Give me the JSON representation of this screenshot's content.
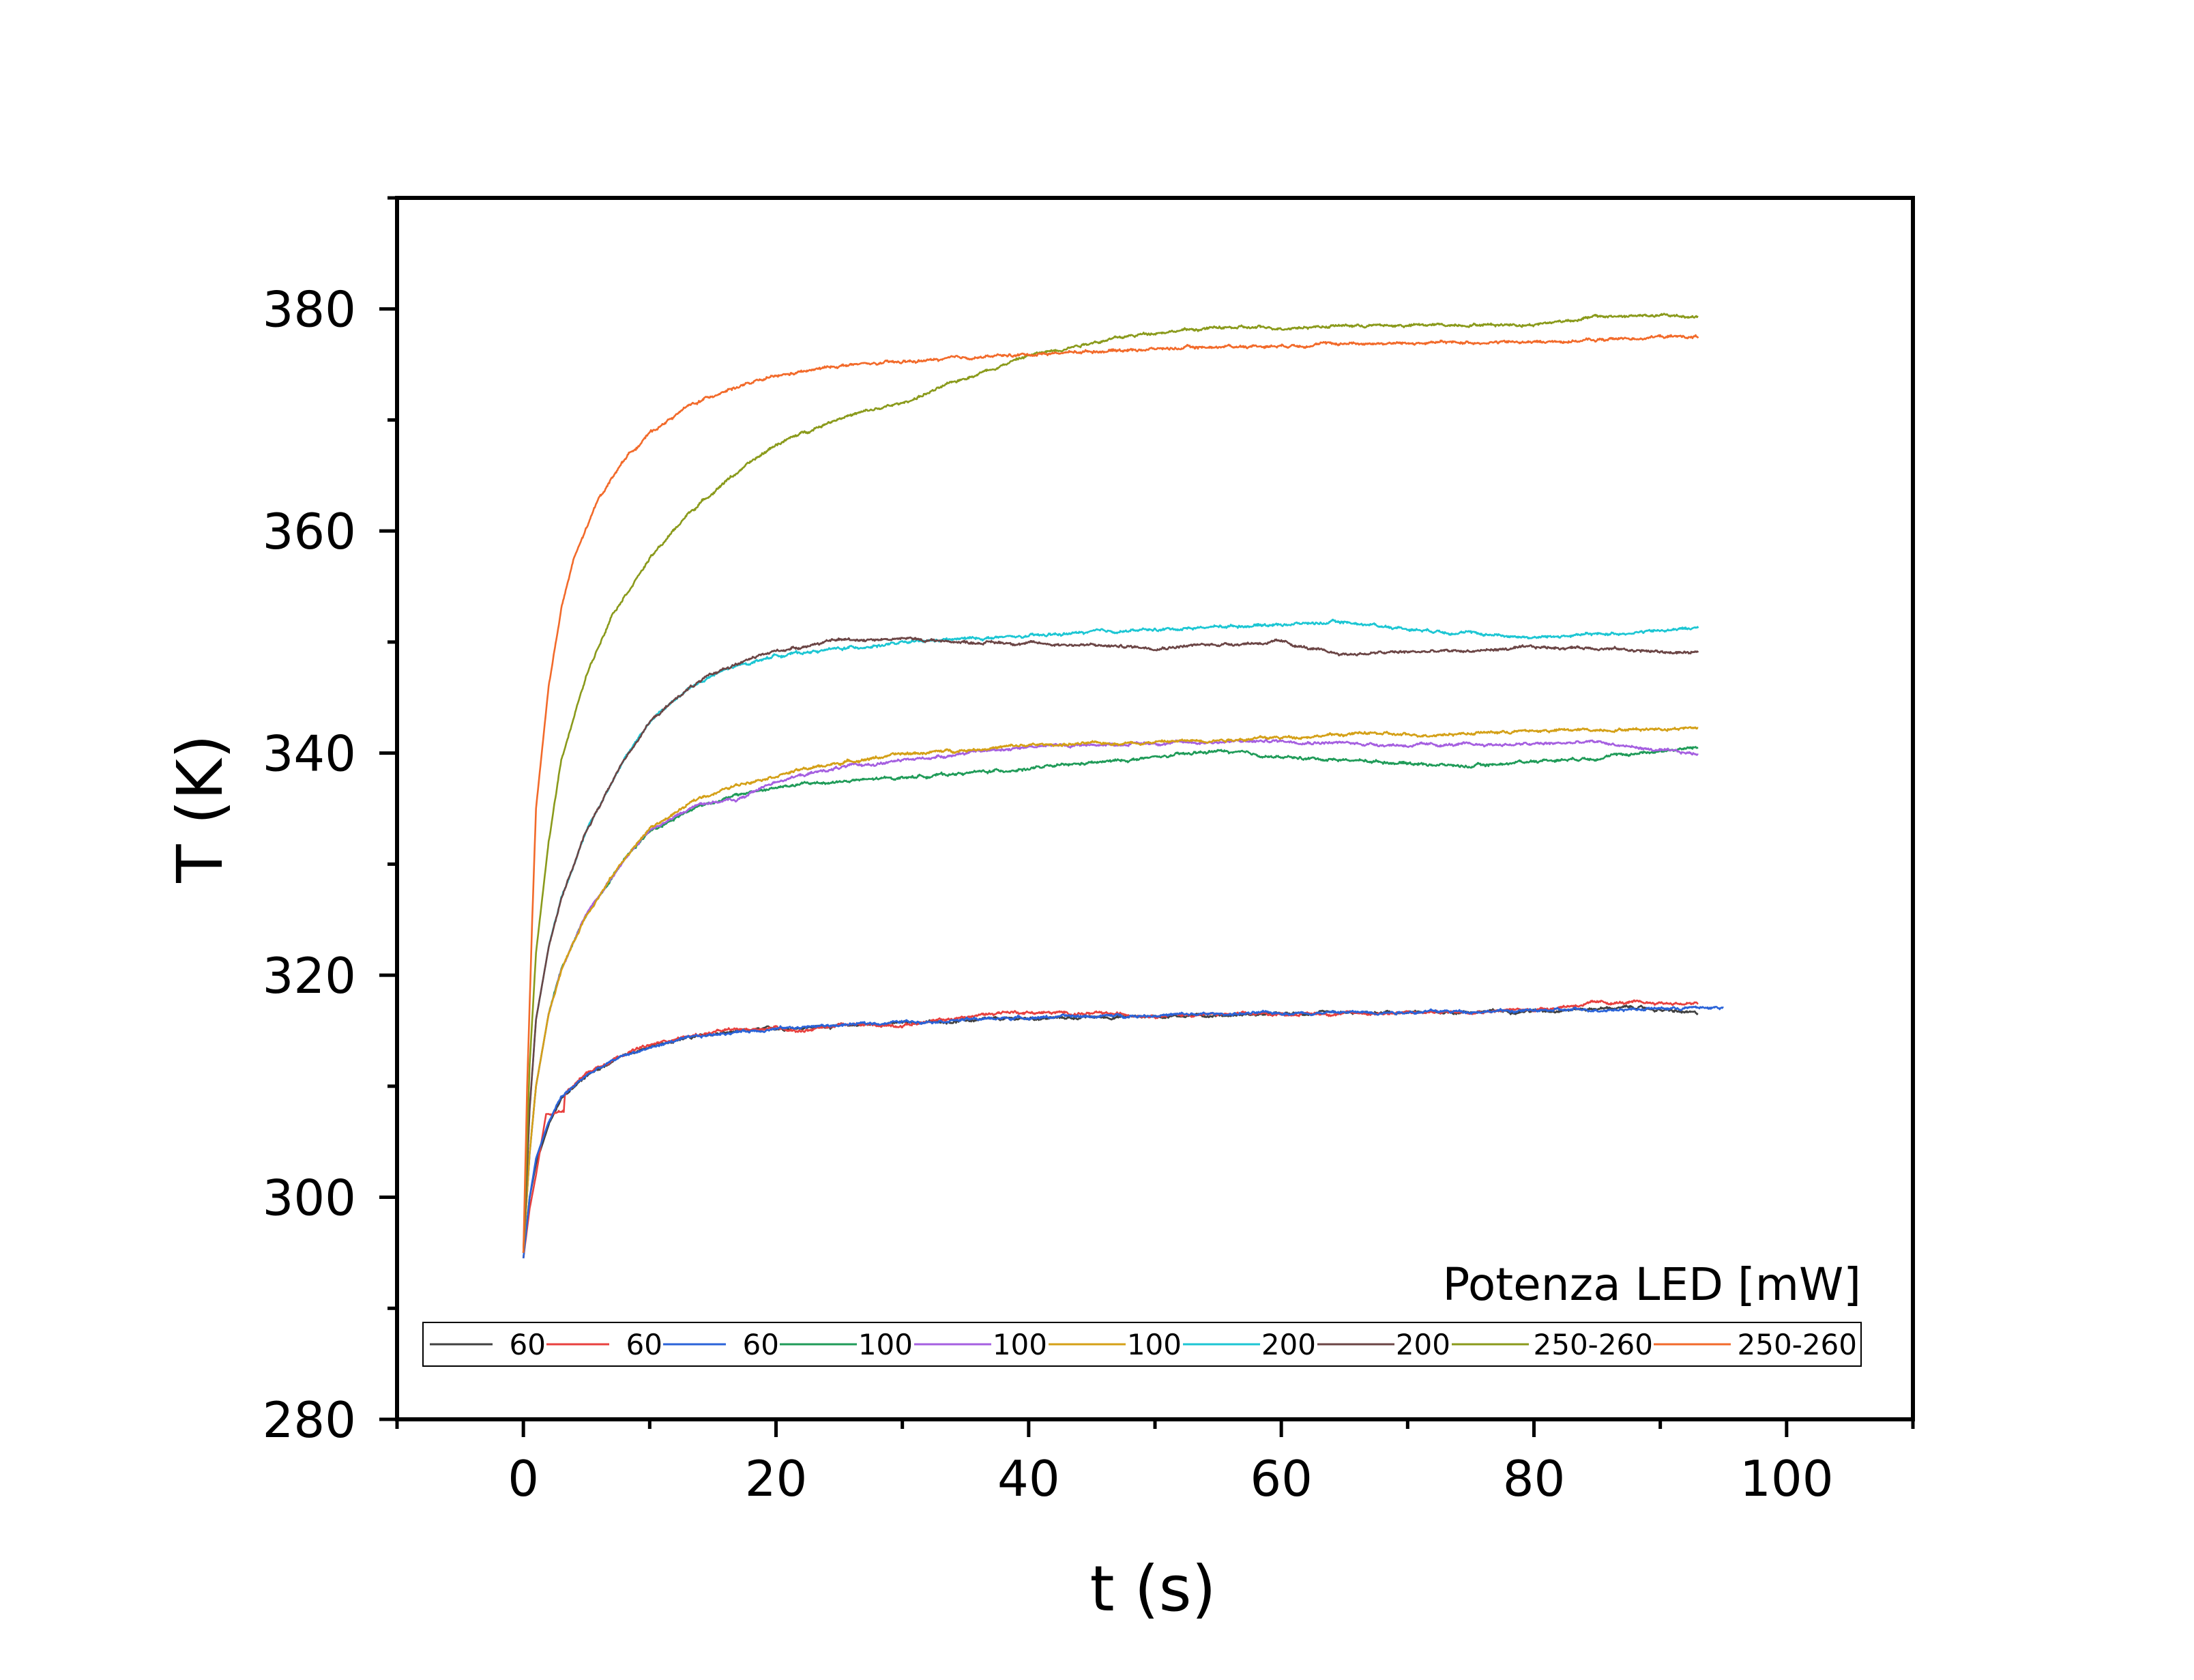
{
  "chart_data": {
    "type": "line",
    "title": "",
    "xlabel": "t (s)",
    "ylabel": "T (K)",
    "xlim": [
      -10,
      110
    ],
    "ylim": [
      280,
      390
    ],
    "xticks": [
      0,
      20,
      40,
      60,
      80,
      100
    ],
    "xtick_labels": [
      "0",
      "20",
      "40",
      "60",
      "80",
      "100"
    ],
    "yticks": [
      280,
      300,
      320,
      340,
      360,
      380
    ],
    "ytick_labels": [
      "280",
      "300",
      "320",
      "340",
      "360",
      "380"
    ],
    "grid": false,
    "legend": {
      "title": "Potenza LED [mW]",
      "placement": "bottom-inside",
      "columns": 10
    },
    "series": [
      {
        "name": "60",
        "color": "#404040",
        "end": 93,
        "points": [
          [
            0,
            294.5
          ],
          [
            0.5,
            300
          ],
          [
            1,
            303
          ],
          [
            2,
            306.5
          ],
          [
            3,
            308.8
          ],
          [
            5,
            311
          ],
          [
            8,
            312.8
          ],
          [
            12,
            314.2
          ],
          [
            16,
            314.8
          ],
          [
            20,
            315.2
          ],
          [
            30,
            315.7
          ],
          [
            40,
            316.1
          ],
          [
            50,
            316.3
          ],
          [
            60,
            316.5
          ],
          [
            70,
            316.6
          ],
          [
            80,
            316.8
          ],
          [
            88,
            317.1
          ],
          [
            93,
            316.5
          ]
        ]
      },
      {
        "name": "60",
        "color": "#e8403e",
        "end": 93,
        "points": [
          [
            0,
            294.5
          ],
          [
            0.5,
            299
          ],
          [
            1,
            302
          ],
          [
            1.8,
            307.5
          ],
          [
            2.2,
            307.5
          ],
          [
            3.2,
            307.8
          ],
          [
            3.3,
            309.5
          ],
          [
            5,
            311.2
          ],
          [
            8,
            313
          ],
          [
            12,
            314.3
          ],
          [
            16,
            315
          ],
          [
            20,
            315.3
          ],
          [
            22,
            315
          ],
          [
            25,
            315.5
          ],
          [
            30,
            315.5
          ],
          [
            35,
            316.2
          ],
          [
            38,
            316.7
          ],
          [
            42,
            316.6
          ],
          [
            50,
            316.4
          ],
          [
            60,
            316.5
          ],
          [
            70,
            316.6
          ],
          [
            80,
            316.9
          ],
          [
            85,
            317.5
          ],
          [
            90,
            317.5
          ],
          [
            93,
            317.4
          ]
        ]
      },
      {
        "name": "60",
        "color": "#2a63d8",
        "end": 95,
        "points": [
          [
            0,
            294.5
          ],
          [
            0.5,
            300
          ],
          [
            1,
            303.5
          ],
          [
            2,
            306.8
          ],
          [
            3,
            309
          ],
          [
            5,
            311
          ],
          [
            8,
            312.8
          ],
          [
            12,
            314.1
          ],
          [
            16,
            314.8
          ],
          [
            20,
            315.2
          ],
          [
            30,
            315.8
          ],
          [
            40,
            316.2
          ],
          [
            50,
            316.4
          ],
          [
            60,
            316.6
          ],
          [
            70,
            316.7
          ],
          [
            80,
            316.8
          ],
          [
            90,
            317
          ],
          [
            95,
            317.1
          ]
        ]
      },
      {
        "name": "100",
        "color": "#1f9b58",
        "end": 93,
        "points": [
          [
            0,
            295
          ],
          [
            0.5,
            304
          ],
          [
            1,
            310
          ],
          [
            2,
            316.5
          ],
          [
            3,
            320.5
          ],
          [
            5,
            325.5
          ],
          [
            8,
            330.5
          ],
          [
            10,
            333
          ],
          [
            14,
            335.3
          ],
          [
            18,
            336.5
          ],
          [
            22,
            337.2
          ],
          [
            26,
            337.5
          ],
          [
            30,
            337.8
          ],
          [
            35,
            338.2
          ],
          [
            40,
            338.6
          ],
          [
            45,
            339.1
          ],
          [
            50,
            339.6
          ],
          [
            55,
            340.2
          ],
          [
            60,
            339.6
          ],
          [
            65,
            339.4
          ],
          [
            70,
            339.1
          ],
          [
            75,
            338.8
          ],
          [
            80,
            339.3
          ],
          [
            85,
            339.6
          ],
          [
            90,
            340.2
          ],
          [
            93,
            340.5
          ]
        ]
      },
      {
        "name": "100",
        "color": "#a55fe0",
        "end": 93,
        "points": [
          [
            0,
            295
          ],
          [
            0.5,
            304
          ],
          [
            1,
            310
          ],
          [
            2,
            316.5
          ],
          [
            3,
            320.5
          ],
          [
            5,
            325.5
          ],
          [
            8,
            330.5
          ],
          [
            10,
            333
          ],
          [
            14,
            335.5
          ],
          [
            17,
            335.8
          ],
          [
            20,
            337.5
          ],
          [
            25,
            338.7
          ],
          [
            30,
            339.3
          ],
          [
            35,
            340
          ],
          [
            40,
            340.6
          ],
          [
            50,
            340.9
          ],
          [
            60,
            341.1
          ],
          [
            70,
            340.7
          ],
          [
            80,
            340.8
          ],
          [
            85,
            341
          ],
          [
            90,
            340.2
          ],
          [
            93,
            339.9
          ]
        ]
      },
      {
        "name": "100",
        "color": "#d4a017",
        "end": 93,
        "points": [
          [
            0,
            295
          ],
          [
            0.5,
            304
          ],
          [
            1,
            310
          ],
          [
            2,
            316.5
          ],
          [
            3,
            320.5
          ],
          [
            5,
            325.5
          ],
          [
            8,
            330.5
          ],
          [
            10,
            333.2
          ],
          [
            14,
            336
          ],
          [
            18,
            337.5
          ],
          [
            22,
            338.5
          ],
          [
            26,
            339.3
          ],
          [
            30,
            339.9
          ],
          [
            35,
            340.3
          ],
          [
            40,
            340.7
          ],
          [
            50,
            341
          ],
          [
            60,
            341.4
          ],
          [
            67,
            341.8
          ],
          [
            70,
            341.6
          ],
          [
            80,
            342
          ],
          [
            90,
            342.2
          ],
          [
            93,
            342.3
          ]
        ]
      },
      {
        "name": "200",
        "color": "#1cc6d3",
        "end": 93,
        "points": [
          [
            0,
            295
          ],
          [
            0.5,
            308
          ],
          [
            1,
            316
          ],
          [
            2,
            322.5
          ],
          [
            3,
            327
          ],
          [
            5,
            333
          ],
          [
            8,
            339.5
          ],
          [
            10,
            342.8
          ],
          [
            13,
            345.8
          ],
          [
            16,
            347.5
          ],
          [
            20,
            348.8
          ],
          [
            25,
            349.4
          ],
          [
            30,
            349.9
          ],
          [
            35,
            350.3
          ],
          [
            40,
            350.5
          ],
          [
            45,
            350.9
          ],
          [
            50,
            351.1
          ],
          [
            55,
            351.4
          ],
          [
            60,
            351.6
          ],
          [
            65,
            351.8
          ],
          [
            70,
            351.2
          ],
          [
            75,
            350.8
          ],
          [
            80,
            350.4
          ],
          [
            85,
            350.7
          ],
          [
            90,
            351
          ],
          [
            93,
            351.3
          ]
        ]
      },
      {
        "name": "200",
        "color": "#6b4545",
        "end": 93,
        "points": [
          [
            0,
            295
          ],
          [
            0.5,
            308
          ],
          [
            1,
            316
          ],
          [
            2,
            322.5
          ],
          [
            3,
            327
          ],
          [
            5,
            333
          ],
          [
            8,
            339.5
          ],
          [
            10,
            342.8
          ],
          [
            13,
            345.8
          ],
          [
            16,
            347.7
          ],
          [
            20,
            349.2
          ],
          [
            25,
            350.2
          ],
          [
            30,
            350.3
          ],
          [
            35,
            350
          ],
          [
            40,
            349.9
          ],
          [
            45,
            349.7
          ],
          [
            50,
            349.5
          ],
          [
            55,
            349.8
          ],
          [
            60,
            350
          ],
          [
            63,
            349.2
          ],
          [
            65,
            348.9
          ],
          [
            70,
            349.1
          ],
          [
            75,
            349.2
          ],
          [
            80,
            349.5
          ],
          [
            85,
            349.5
          ],
          [
            90,
            349.1
          ],
          [
            93,
            349
          ]
        ]
      },
      {
        "name": "250-260",
        "color": "#8a9a1b",
        "end": 93,
        "points": [
          [
            0,
            295
          ],
          [
            0.5,
            312
          ],
          [
            1,
            322
          ],
          [
            2,
            332
          ],
          [
            3,
            339.5
          ],
          [
            5,
            347
          ],
          [
            7,
            352.5
          ],
          [
            10,
            357.5
          ],
          [
            13,
            361.5
          ],
          [
            16,
            364.5
          ],
          [
            20,
            367.8
          ],
          [
            25,
            370.2
          ],
          [
            30,
            371.5
          ],
          [
            35,
            373.8
          ],
          [
            40,
            375.8
          ],
          [
            45,
            377
          ],
          [
            50,
            377.9
          ],
          [
            55,
            378.3
          ],
          [
            60,
            378.3
          ],
          [
            65,
            378.5
          ],
          [
            70,
            378.5
          ],
          [
            75,
            378.6
          ],
          [
            80,
            378.6
          ],
          [
            85,
            379.3
          ],
          [
            90,
            379.4
          ],
          [
            93,
            379.3
          ]
        ]
      },
      {
        "name": "250-260",
        "color": "#f26a2a",
        "end": 93,
        "points": [
          [
            0,
            295
          ],
          [
            0.3,
            310
          ],
          [
            0.7,
            325
          ],
          [
            1,
            335
          ],
          [
            2,
            346
          ],
          [
            3,
            353
          ],
          [
            4,
            357.5
          ],
          [
            6,
            363
          ],
          [
            8,
            366.5
          ],
          [
            10,
            368.8
          ],
          [
            13,
            371.2
          ],
          [
            16,
            372.7
          ],
          [
            20,
            373.9
          ],
          [
            25,
            374.9
          ],
          [
            30,
            375.2
          ],
          [
            35,
            375.6
          ],
          [
            40,
            375.9
          ],
          [
            45,
            376.2
          ],
          [
            50,
            376.4
          ],
          [
            55,
            376.6
          ],
          [
            60,
            376.7
          ],
          [
            65,
            376.9
          ],
          [
            70,
            376.9
          ],
          [
            75,
            377
          ],
          [
            80,
            377
          ],
          [
            85,
            377.2
          ],
          [
            90,
            377.5
          ],
          [
            93,
            377.5
          ]
        ]
      }
    ]
  }
}
